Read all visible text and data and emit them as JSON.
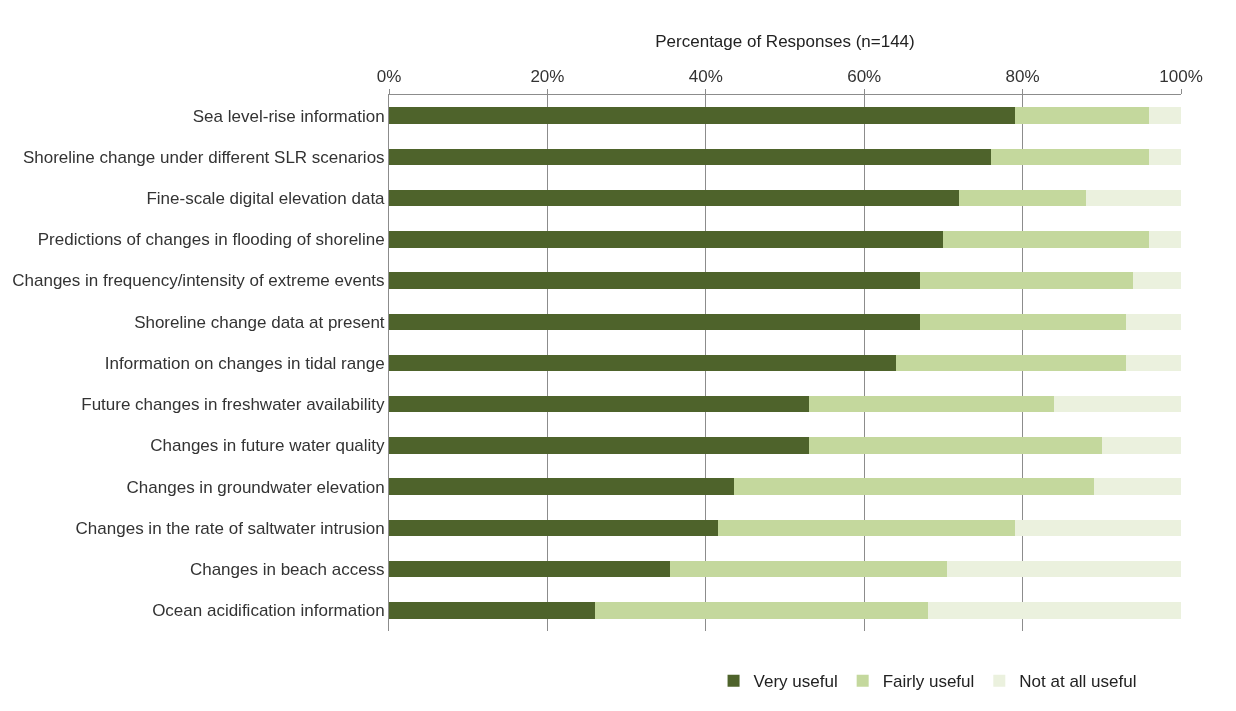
{
  "chart_data": {
    "type": "bar",
    "orientation": "horizontal",
    "stacked": true,
    "xlabel": "Percentage of Responses (n=144)",
    "categories": [
      "Sea level-rise information",
      "Shoreline change under different SLR scenarios",
      "Fine-scale digital elevation data",
      "Predictions of changes in flooding of shoreline",
      "Changes in frequency/intensity of extreme events",
      "Shoreline change data at present",
      "Information on changes in tidal range",
      "Future changes in freshwater availability",
      "Changes in future water quality",
      "Changes in groundwater elevation",
      "Changes in the rate of saltwater intrusion",
      "Changes in beach access",
      "Ocean acidification information"
    ],
    "series": [
      {
        "name": "Very useful",
        "color": "#4e632b",
        "values": [
          79,
          76,
          72,
          70,
          67,
          67,
          64,
          53,
          53,
          43.5,
          41.5,
          35.5,
          26
        ]
      },
      {
        "name": "Fairly useful",
        "color": "#c4d89d",
        "values": [
          17,
          20,
          16,
          26,
          27,
          26,
          29,
          31,
          37,
          45.5,
          37.5,
          35,
          42
        ]
      },
      {
        "name": "Not at all useful",
        "color": "#ebf1de",
        "values": [
          4,
          4,
          12,
          4,
          6,
          7,
          7,
          16,
          10,
          11,
          21,
          29.5,
          32
        ]
      }
    ],
    "xlim": [
      0,
      100
    ],
    "xticks": [
      {
        "value": 0,
        "label": "0%"
      },
      {
        "value": 20,
        "label": "20%"
      },
      {
        "value": 40,
        "label": "40%"
      },
      {
        "value": 60,
        "label": "60%"
      },
      {
        "value": 80,
        "label": "80%"
      },
      {
        "value": 100,
        "label": "100%"
      }
    ],
    "grid": "x",
    "legend": "bottom"
  }
}
